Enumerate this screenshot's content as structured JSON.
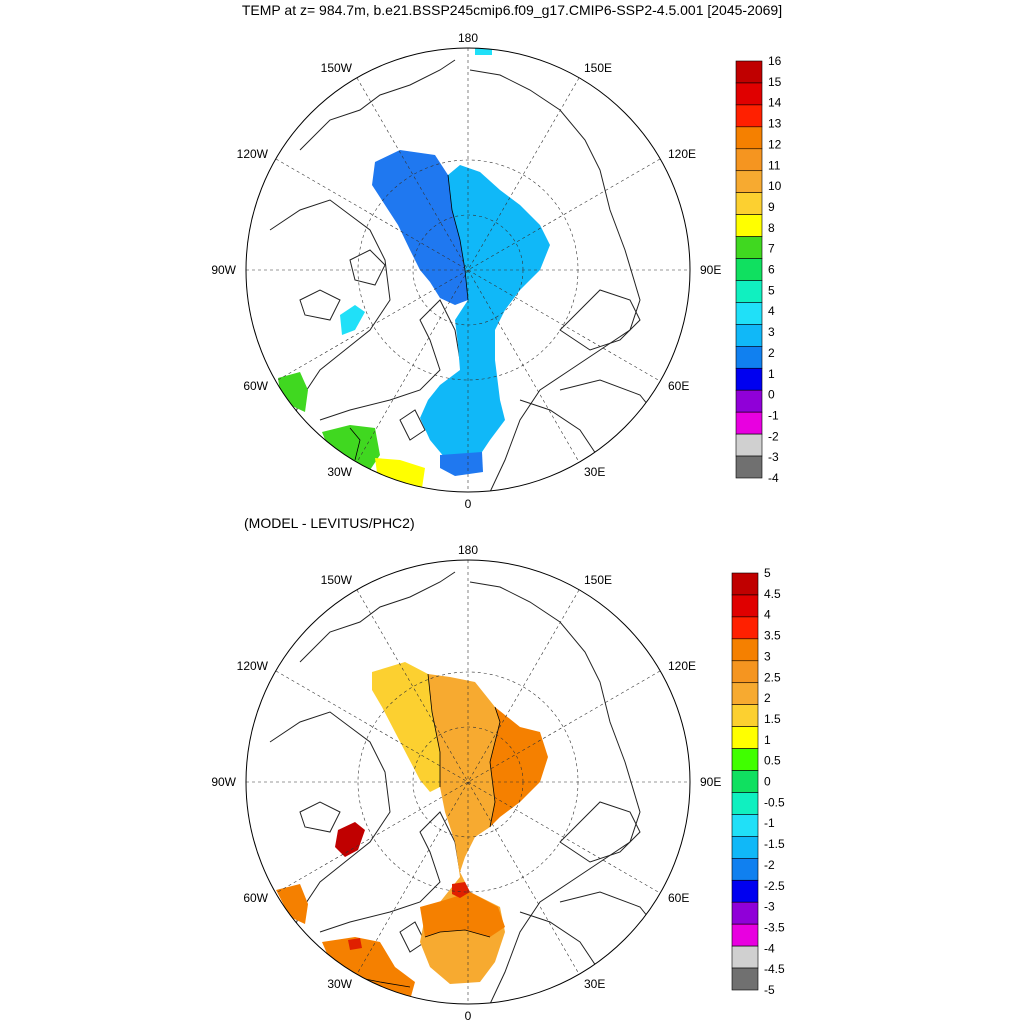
{
  "title": "TEMP at z= 984.7m, b.e21.BSSP245cmip6.f09_g17.CMIP6-SSP2-4.5.001 [2045-2069]",
  "subtitle": "(MODEL - LEVITUS/PHC2)",
  "lon_labels": {
    "top": "180",
    "bottom": "0",
    "left": "90W",
    "right": "90E",
    "upper_left_1": "150W",
    "upper_left_2": "120W",
    "lower_left_1": "60W",
    "lower_left_2": "30W",
    "upper_right_1": "150E",
    "upper_right_2": "120E",
    "lower_right_1": "60E",
    "lower_right_2": "30E"
  },
  "colorbar1": {
    "colors": [
      "#c00000",
      "#e00000",
      "#ff2000",
      "#f58000",
      "#f59520",
      "#f7aa30",
      "#fcd030",
      "#ffff00",
      "#40d820",
      "#10e060",
      "#10f0c0",
      "#20e0f8",
      "#10b8f8",
      "#1080f0",
      "#0000f0",
      "#9000d8",
      "#e800e0",
      "#d0d0d0",
      "#707070"
    ],
    "labels": [
      "16",
      "15",
      "14",
      "13",
      "12",
      "11",
      "10",
      "9",
      "8",
      "7",
      "6",
      "5",
      "4",
      "3",
      "2",
      "1",
      "0",
      "-1",
      "-2",
      "-3",
      "-4"
    ]
  },
  "colorbar2": {
    "colors": [
      "#c00000",
      "#e00000",
      "#ff2000",
      "#f58000",
      "#f59520",
      "#f7aa30",
      "#fcd030",
      "#ffff00",
      "#40ff00",
      "#10e060",
      "#10f0c0",
      "#20e0f8",
      "#10b8f8",
      "#1080f0",
      "#0000f0",
      "#9000d8",
      "#e800e0",
      "#d0d0d0",
      "#707070"
    ],
    "labels": [
      "5",
      "4.5",
      "4",
      "3.5",
      "3",
      "2.5",
      "2",
      "1.5",
      "1",
      "0.5",
      "0",
      "-0.5",
      "-1",
      "-1.5",
      "-2",
      "-2.5",
      "-3",
      "-3.5",
      "-4",
      "-4.5",
      "-5"
    ]
  },
  "map_colors": {
    "blue_dark": "#1f78f0",
    "blue_light": "#10b8f8",
    "cyan": "#20e0f8",
    "green": "#40d820",
    "yellow": "#ffff00",
    "lightorange": "#f7aa30",
    "orange": "#f59520",
    "deeporange": "#f58000",
    "paleyellow": "#fcd030",
    "red": "#c00000"
  }
}
